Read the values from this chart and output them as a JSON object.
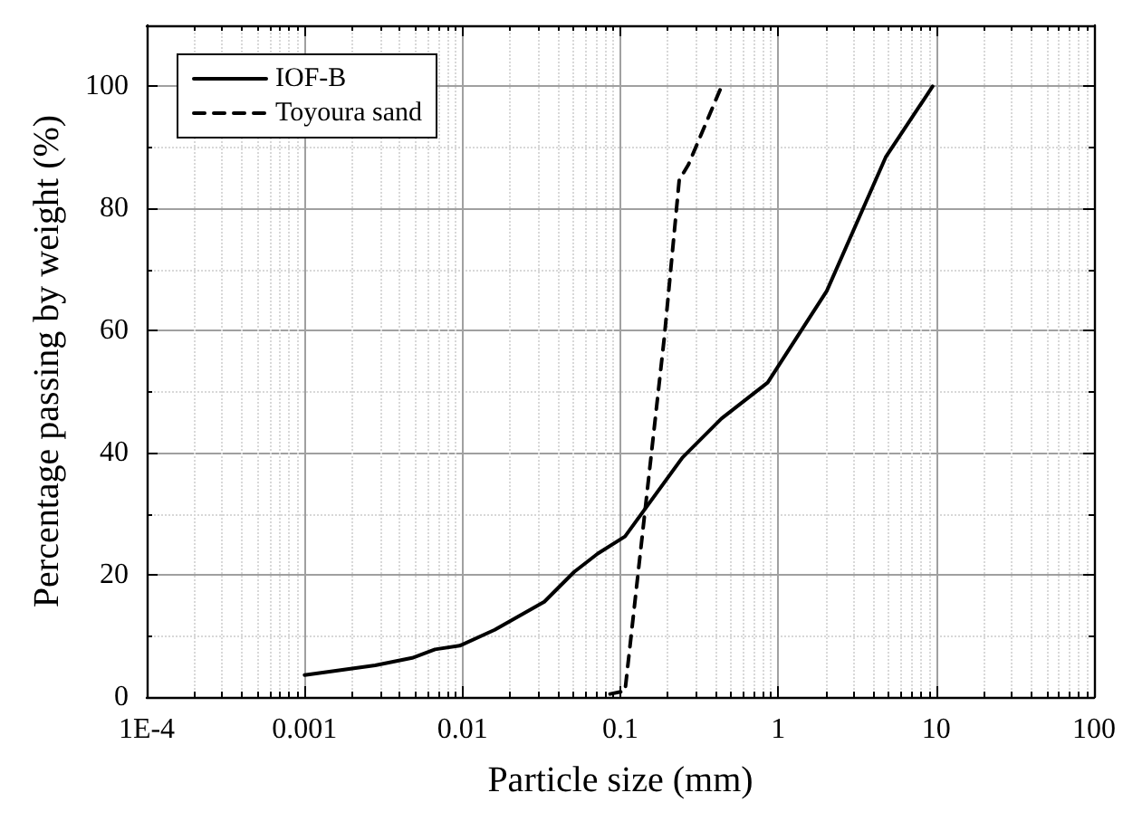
{
  "chart_data": {
    "type": "line",
    "xlabel": "Particle size (mm)",
    "ylabel": "Percentage passing by weight (%)",
    "log": "x",
    "xlim": [
      0.0001,
      100
    ],
    "xticks": [
      {
        "value": 0.0001,
        "label": "1E-4"
      },
      0.001,
      0.01,
      0.1,
      1,
      10,
      100
    ],
    "ylim": [
      0,
      110
    ],
    "yticks": [
      0,
      20,
      40,
      60,
      80,
      100
    ],
    "grid": true,
    "legend": "top left",
    "marker": "none",
    "series": [
      {
        "name": "IOF-B",
        "color": "#000000",
        "line_style": "solid",
        "x": [
          0.001,
          0.0028,
          0.0048,
          0.0067,
          0.0096,
          0.016,
          0.033,
          0.051,
          0.072,
          0.107,
          0.247,
          0.437,
          0.857,
          2.03,
          4.79,
          9.5
        ],
        "values": [
          3.6,
          5.2,
          6.4,
          7.8,
          8.4,
          11,
          15.6,
          20.5,
          23.5,
          26.3,
          39.2,
          45.6,
          51.5,
          66.5,
          88.4,
          100
        ]
      },
      {
        "name": "Toyoura sand",
        "color": "#000000",
        "line_style": "dashed",
        "x": [
          0.086,
          0.107,
          0.19,
          0.236,
          0.27,
          0.437
        ],
        "values": [
          0.5,
          1,
          59,
          84.7,
          87.2,
          100
        ]
      }
    ]
  }
}
